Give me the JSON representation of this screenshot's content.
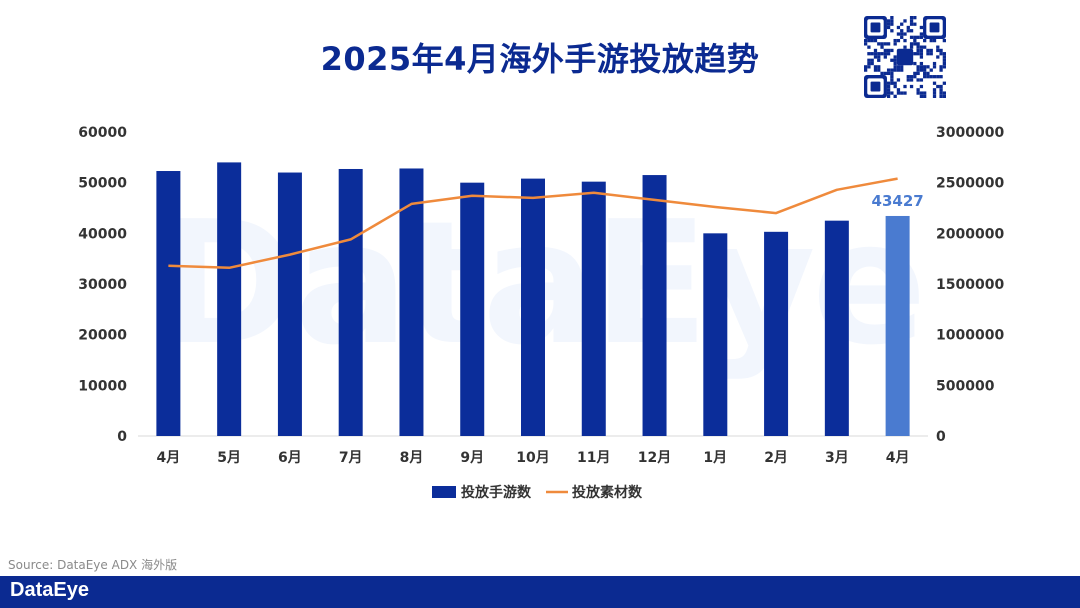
{
  "header": {
    "title": "2025年4月海外手游投放趋势"
  },
  "watermark_text": "DataEye",
  "source_text": "Source: DataEye ADX 海外版",
  "footer": {
    "logo_text": "DataEye"
  },
  "colors": {
    "bar": "#0b2d9a",
    "bar_highlight": "#4a7bd0",
    "line": "#ef8a3c",
    "title": "#0b2a91",
    "footer": "#0b2a91",
    "axis_text": "#333333"
  },
  "qr_icon": "qr-code-icon",
  "chart_data": {
    "type": "bar",
    "title": "2025年4月海外手游投放趋势",
    "categories": [
      "4月",
      "5月",
      "6月",
      "7月",
      "8月",
      "9月",
      "10月",
      "11月",
      "12月",
      "1月",
      "2月",
      "3月",
      "4月"
    ],
    "series": [
      {
        "name": "投放手游数",
        "type": "bar",
        "axis": "left",
        "values": [
          52300,
          54000,
          52000,
          52700,
          52800,
          50000,
          50800,
          50200,
          51500,
          40000,
          40300,
          42500,
          43427
        ]
      },
      {
        "name": "投放素材数",
        "type": "line",
        "axis": "right",
        "values": [
          1680000,
          1660000,
          1790000,
          1940000,
          2290000,
          2370000,
          2350000,
          2400000,
          2330000,
          2260000,
          2200000,
          2430000,
          2540000
        ]
      }
    ],
    "highlight_index": 12,
    "highlight_label": "43427",
    "y_left": {
      "range": [
        0,
        60000
      ],
      "ticks": [
        "0",
        "10000",
        "20000",
        "30000",
        "40000",
        "50000",
        "60000"
      ]
    },
    "y_right": {
      "range": [
        0,
        3000000
      ],
      "ticks": [
        "0",
        "500000",
        "1000000",
        "1500000",
        "2000000",
        "2500000",
        "3000000"
      ]
    },
    "grid": false,
    "legend_position": "bottom"
  }
}
